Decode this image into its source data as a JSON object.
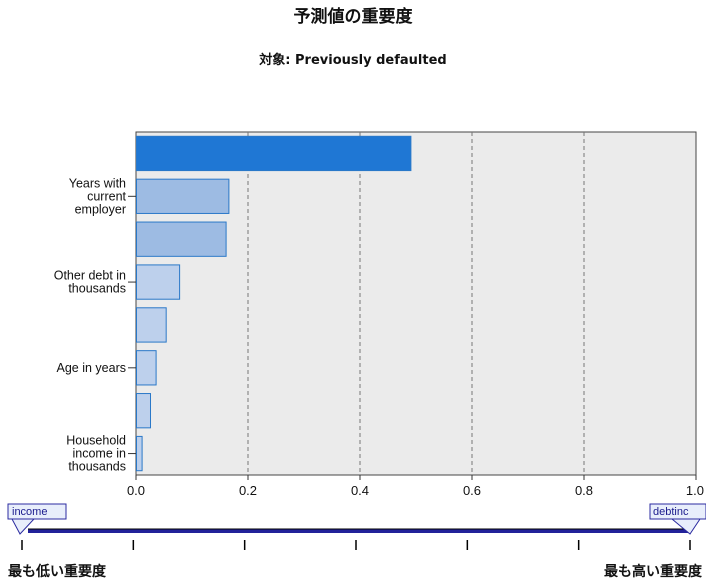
{
  "title": "予測値の重要度",
  "subtitle": "対象: Previously defaulted",
  "chart_data": {
    "type": "bar",
    "orientation": "horizontal",
    "categories": [
      "",
      "Years with current employer",
      "",
      "Other debt in thousands",
      "",
      "Age in years",
      "",
      "Household income in thousands"
    ],
    "values": [
      0.49,
      0.165,
      0.16,
      0.077,
      0.053,
      0.035,
      0.025,
      0.01
    ],
    "xlim": [
      0,
      1
    ],
    "xticks": [
      "0.0",
      "0.2",
      "0.4",
      "0.6",
      "0.8",
      "1.0"
    ],
    "grid": "vertical dashed",
    "colors": [
      "#1f77d4",
      "#9dbbe3",
      "#9dbbe3",
      "#bdd0ec",
      "#bdd0ec",
      "#bdd0ec",
      "#bdd0ec",
      "#bdd0ec"
    ]
  },
  "slider": {
    "left_handle": "income",
    "right_handle": "debtinc",
    "low_label": "最も低い重要度",
    "high_label": "最も高い重要度",
    "tick_count": 7
  }
}
